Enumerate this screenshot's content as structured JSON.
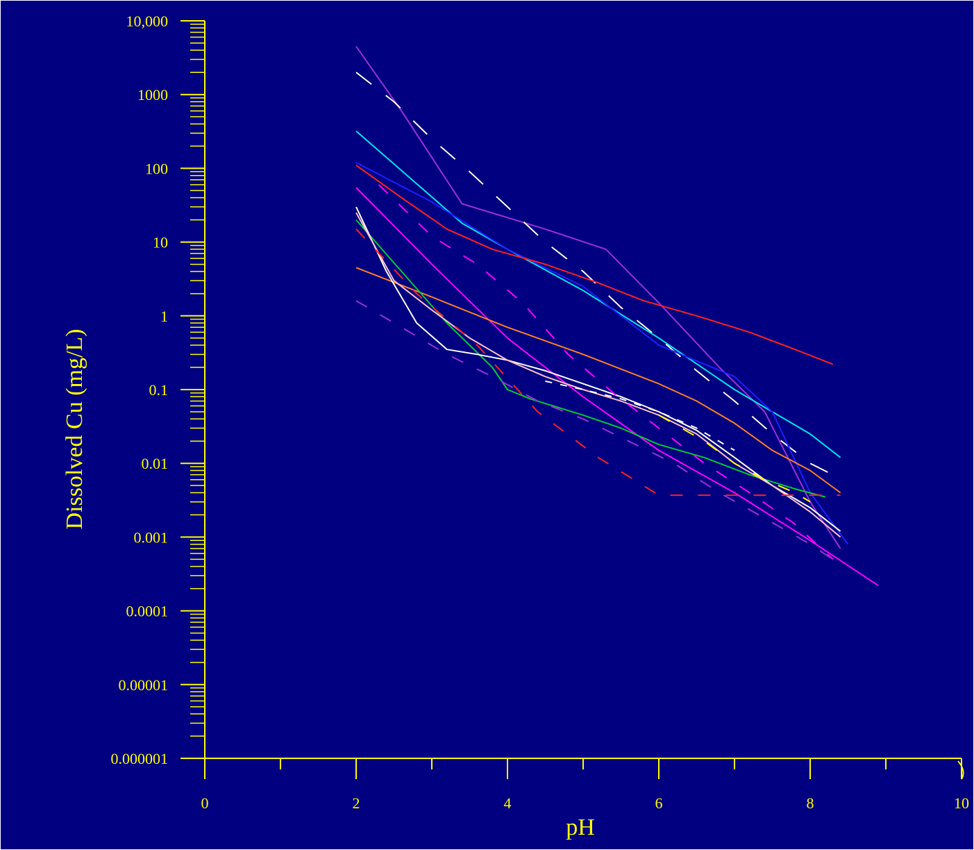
{
  "chart_data": {
    "type": "line",
    "xlabel": "pH",
    "ylabel": "Dissolved Cu (mg/L)",
    "x_ticks": [
      "0",
      "2",
      "4",
      "6",
      "8",
      "10"
    ],
    "y_ticks": [
      "10,000",
      "1000",
      "100",
      "10",
      "1",
      "0.1",
      "0.01",
      "0.001",
      "0.0001",
      "0.00001",
      "0.000001"
    ],
    "xlim": [
      0,
      10
    ],
    "ylim": [
      1e-06,
      10000
    ],
    "yscale": "log",
    "grid": false,
    "legend": "none",
    "colors": {
      "axis": "#ffff00",
      "background": "#000080",
      "labels": "#ffff00"
    },
    "series": [
      {
        "color": "#9b30d9",
        "dash": "solid",
        "x": [
          2.0,
          2.6,
          3.4,
          4.5,
          5.3,
          6.0,
          6.8,
          7.4,
          8.0,
          8.4
        ],
        "y": [
          4500,
          600,
          33,
          15,
          8,
          1.5,
          0.2,
          0.05,
          0.003,
          0.0007
        ]
      },
      {
        "color": "#ffffff",
        "dash": "long",
        "x": [
          2.0,
          2.5,
          3.0,
          3.5,
          4.0,
          4.5,
          5.0,
          5.5,
          6.0,
          6.5,
          7.0,
          7.5,
          8.0,
          8.3
        ],
        "y": [
          2000,
          800,
          250,
          90,
          30,
          10,
          4,
          1.3,
          0.5,
          0.18,
          0.07,
          0.025,
          0.01,
          0.007
        ]
      },
      {
        "color": "#00e5ee",
        "dash": "solid",
        "x": [
          2.0,
          3.4,
          4.0,
          5.0,
          6.0,
          7.0,
          8.0,
          8.4
        ],
        "y": [
          320,
          18,
          8,
          2.2,
          0.5,
          0.1,
          0.025,
          0.012
        ]
      },
      {
        "color": "#1f1fff",
        "dash": "solid",
        "x": [
          2.0,
          3.0,
          4.0,
          5.0,
          6.0,
          7.0,
          7.5,
          8.0,
          8.5
        ],
        "y": [
          120,
          35,
          8,
          2.5,
          0.4,
          0.15,
          0.05,
          0.004,
          0.0008
        ]
      },
      {
        "color": "#ff2020",
        "dash": "solid",
        "x": [
          2.0,
          2.6,
          3.2,
          3.8,
          4.5,
          5.2,
          5.8,
          6.5,
          7.2,
          7.8,
          8.3
        ],
        "y": [
          110,
          40,
          15,
          8,
          5,
          2.8,
          1.6,
          1.0,
          0.6,
          0.35,
          0.22
        ]
      },
      {
        "color": "#ff00ff",
        "dash": "solid",
        "x": [
          2.0,
          3.0,
          4.0,
          5.0,
          6.0,
          7.0,
          8.0,
          8.9
        ],
        "y": [
          55,
          5,
          0.5,
          0.08,
          0.015,
          0.004,
          0.0009,
          0.00022
        ]
      },
      {
        "color": "#ff7f24",
        "dash": "solid",
        "x": [
          2.0,
          3.0,
          4.0,
          5.0,
          6.0,
          6.5,
          7.0,
          7.5,
          8.0,
          8.4
        ],
        "y": [
          4.5,
          1.8,
          0.7,
          0.3,
          0.12,
          0.07,
          0.035,
          0.015,
          0.008,
          0.004
        ]
      },
      {
        "color": "#00cc33",
        "dash": "solid",
        "x": [
          2.0,
          2.6,
          3.2,
          3.8,
          4.0,
          4.3,
          5.0,
          5.5,
          6.0,
          6.6,
          7.2,
          7.8,
          8.2
        ],
        "y": [
          20,
          4,
          0.8,
          0.2,
          0.1,
          0.075,
          0.045,
          0.03,
          0.018,
          0.012,
          0.007,
          0.0045,
          0.0035
        ]
      },
      {
        "color": "#ffffff",
        "dash": "solid",
        "x": [
          2.0,
          2.4,
          2.8,
          3.2,
          3.6,
          4.0,
          4.5,
          5.0,
          5.5,
          6.0,
          6.5,
          7.0,
          7.5,
          8.0,
          8.4
        ],
        "y": [
          30,
          4,
          0.8,
          0.35,
          0.3,
          0.25,
          0.18,
          0.12,
          0.08,
          0.05,
          0.028,
          0.012,
          0.005,
          0.0025,
          0.0012
        ]
      },
      {
        "color": "#ffc0cb",
        "dash": "solid",
        "x": [
          2.0,
          2.5,
          3.0,
          3.5,
          4.0,
          4.5,
          5.0,
          5.5,
          6.0,
          6.5,
          7.0,
          7.5,
          8.0,
          8.4
        ],
        "y": [
          25,
          3,
          1.2,
          0.5,
          0.25,
          0.15,
          0.1,
          0.07,
          0.045,
          0.025,
          0.01,
          0.005,
          0.0022,
          0.001
        ]
      },
      {
        "color": "#ff2020",
        "dash": "medium",
        "x": [
          2.0,
          2.8,
          3.6,
          4.4,
          5.2,
          6.0,
          6.8,
          7.6,
          8.4
        ],
        "y": [
          15,
          2,
          0.4,
          0.05,
          0.012,
          0.0037,
          0.0037,
          0.0037,
          0.0037
        ]
      },
      {
        "color": "#ff00ff",
        "dash": "medium",
        "x": [
          2.3,
          3.0,
          3.6,
          4.2,
          4.8,
          5.4,
          6.0,
          6.6,
          7.2,
          7.8,
          8.3
        ],
        "y": [
          60,
          12,
          5,
          1.5,
          0.3,
          0.09,
          0.03,
          0.01,
          0.004,
          0.0015,
          0.0005
        ]
      },
      {
        "color": "#9b30d9",
        "dash": "medium",
        "x": [
          2.0,
          2.6,
          3.2,
          3.8,
          4.4,
          5.0,
          5.6,
          6.2,
          6.8,
          7.4,
          8.0,
          8.3
        ],
        "y": [
          1.6,
          0.7,
          0.3,
          0.15,
          0.07,
          0.04,
          0.02,
          0.01,
          0.004,
          0.0018,
          0.0008,
          0.0005
        ]
      },
      {
        "color": "#ffff00",
        "dash": "medium",
        "x": [
          6.0,
          6.3,
          6.6,
          7.0,
          7.4,
          7.8,
          8.0
        ],
        "y": [
          0.045,
          0.03,
          0.02,
          0.01,
          0.006,
          0.004,
          0.003
        ]
      },
      {
        "color": "#ffffff",
        "dash": "short",
        "x": [
          4.5,
          5.0,
          5.5,
          6.0,
          6.5,
          7.0
        ],
        "y": [
          0.13,
          0.1,
          0.075,
          0.05,
          0.03,
          0.015
        ]
      }
    ]
  }
}
